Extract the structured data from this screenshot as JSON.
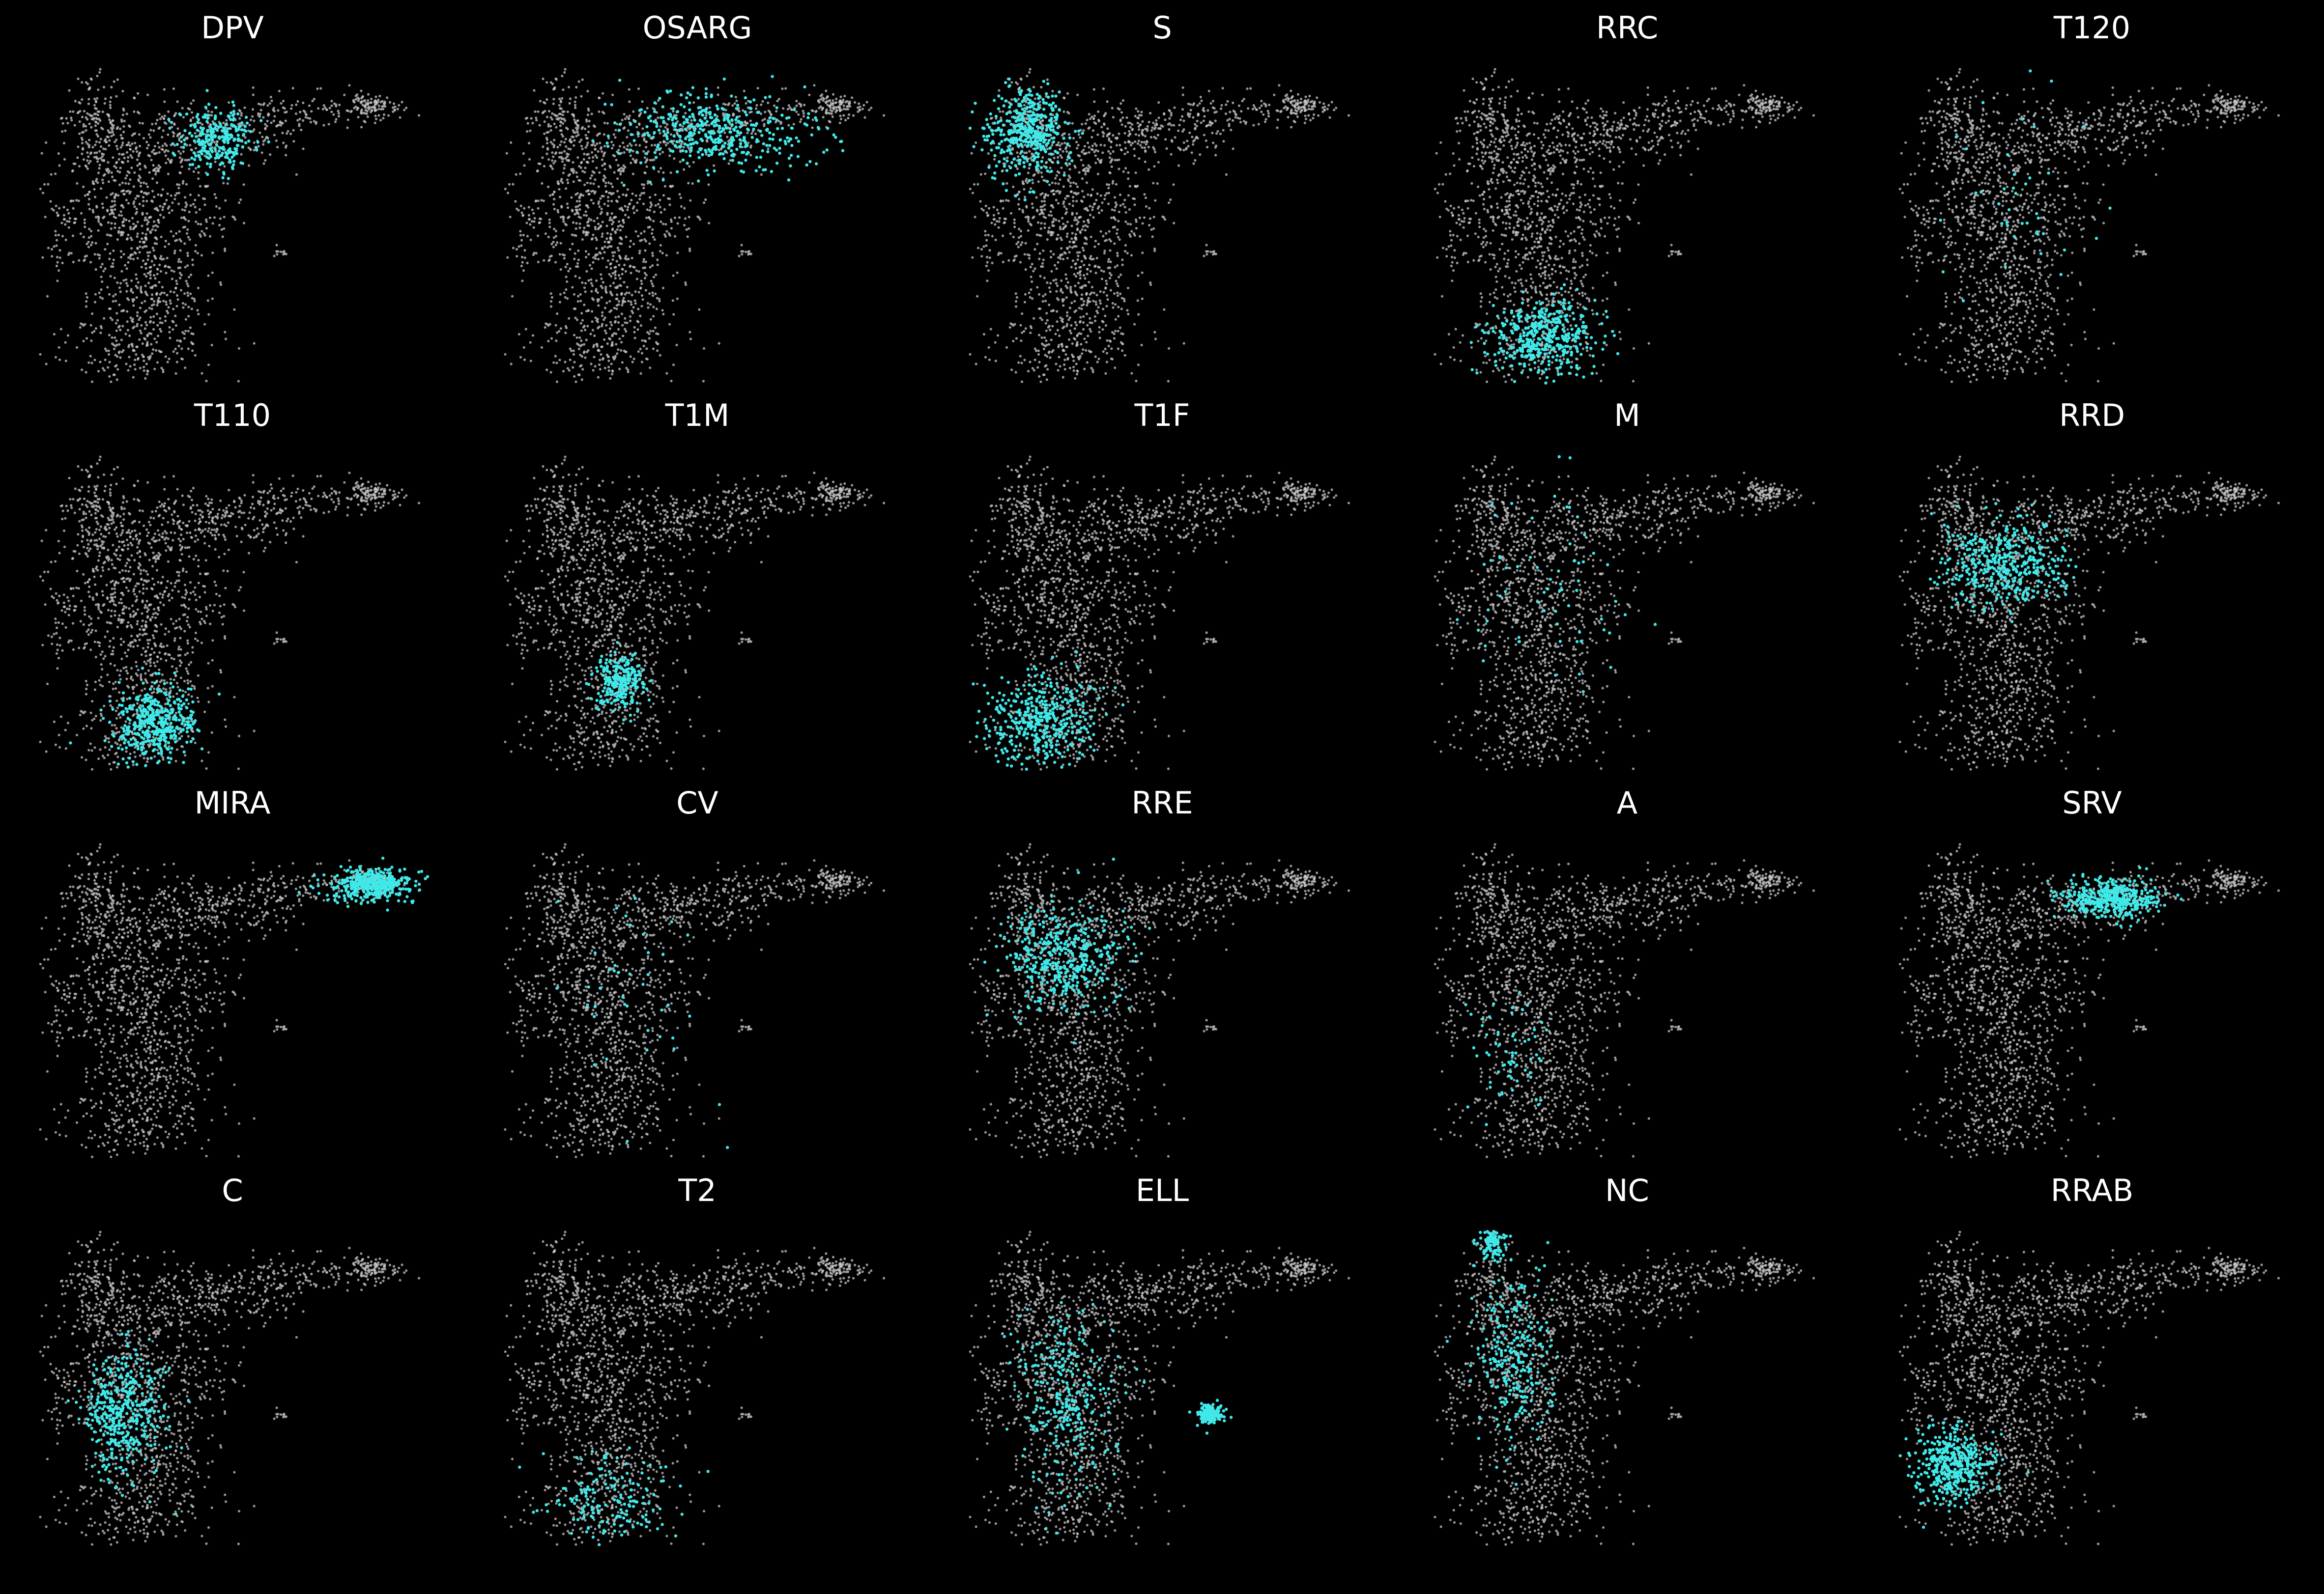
{
  "figure": {
    "background": "#000000",
    "base_color": "#c8c8c8",
    "highlight_color": "#40e8e8"
  },
  "chart_data": {
    "type": "scatter",
    "title": "",
    "xlabel": "",
    "ylabel": "",
    "axes_visible": false,
    "grid": false,
    "rows": 4,
    "columns": 5,
    "panels": [
      {
        "title": "DPV",
        "highlight": [
          {
            "x": 0.46,
            "y": 0.78,
            "sx": 0.05,
            "sy": 0.05,
            "w": 0.6
          }
        ]
      },
      {
        "title": "OSARG",
        "highlight": [
          {
            "x": 0.55,
            "y": 0.8,
            "sx": 0.12,
            "sy": 0.06,
            "w": 1.0
          }
        ]
      },
      {
        "title": "S",
        "highlight": [
          {
            "x": 0.15,
            "y": 0.8,
            "sx": 0.05,
            "sy": 0.07,
            "w": 1.0
          }
        ]
      },
      {
        "title": "RRC",
        "highlight": [
          {
            "x": 0.28,
            "y": 0.15,
            "sx": 0.07,
            "sy": 0.06,
            "w": 1.0
          }
        ]
      },
      {
        "title": "T120",
        "highlight": [
          {
            "x": 0.3,
            "y": 0.55,
            "sx": 0.1,
            "sy": 0.2,
            "w": 0.1
          }
        ]
      },
      {
        "title": "T110",
        "highlight": [
          {
            "x": 0.3,
            "y": 0.15,
            "sx": 0.05,
            "sy": 0.06,
            "w": 1.0
          }
        ]
      },
      {
        "title": "T1M",
        "highlight": [
          {
            "x": 0.3,
            "y": 0.28,
            "sx": 0.03,
            "sy": 0.04,
            "w": 0.6
          }
        ]
      },
      {
        "title": "T1F",
        "highlight": [
          {
            "x": 0.18,
            "y": 0.16,
            "sx": 0.07,
            "sy": 0.07,
            "w": 1.0
          }
        ]
      },
      {
        "title": "M",
        "highlight": [
          {
            "x": 0.3,
            "y": 0.6,
            "sx": 0.1,
            "sy": 0.15,
            "w": 0.15
          }
        ]
      },
      {
        "title": "RRD",
        "highlight": [
          {
            "x": 0.27,
            "y": 0.66,
            "sx": 0.08,
            "sy": 0.07,
            "w": 1.0
          }
        ]
      },
      {
        "title": "MIRA",
        "highlight": [
          {
            "x": 0.86,
            "y": 0.87,
            "sx": 0.05,
            "sy": 0.025,
            "w": 1.0
          }
        ]
      },
      {
        "title": "CV",
        "highlight": [
          {
            "x": 0.3,
            "y": 0.5,
            "sx": 0.1,
            "sy": 0.2,
            "w": 0.1
          }
        ]
      },
      {
        "title": "RRE",
        "highlight": [
          {
            "x": 0.24,
            "y": 0.64,
            "sx": 0.08,
            "sy": 0.08,
            "w": 1.0
          }
        ]
      },
      {
        "title": "A",
        "highlight": [
          {
            "x": 0.2,
            "y": 0.3,
            "sx": 0.05,
            "sy": 0.1,
            "w": 0.15
          }
        ]
      },
      {
        "title": "SRV",
        "highlight": [
          {
            "x": 0.55,
            "y": 0.83,
            "sx": 0.06,
            "sy": 0.03,
            "w": 1.0
          }
        ]
      },
      {
        "title": "C",
        "highlight": [
          {
            "x": 0.22,
            "y": 0.42,
            "sx": 0.05,
            "sy": 0.1,
            "w": 1.0
          }
        ]
      },
      {
        "title": "T2",
        "highlight": [
          {
            "x": 0.28,
            "y": 0.15,
            "sx": 0.08,
            "sy": 0.07,
            "w": 0.4
          }
        ]
      },
      {
        "title": "ELL",
        "highlight": [
          {
            "x": 0.25,
            "y": 0.45,
            "sx": 0.06,
            "sy": 0.15,
            "w": 0.7
          },
          {
            "x": 0.62,
            "y": 0.42,
            "sx": 0.015,
            "sy": 0.015,
            "w": 0.4
          }
        ]
      },
      {
        "title": "NC",
        "highlight": [
          {
            "x": 0.15,
            "y": 0.97,
            "sx": 0.015,
            "sy": 0.03,
            "w": 0.3
          },
          {
            "x": 0.2,
            "y": 0.6,
            "sx": 0.05,
            "sy": 0.15,
            "w": 0.6
          }
        ]
      },
      {
        "title": "RRAB",
        "highlight": [
          {
            "x": 0.14,
            "y": 0.26,
            "sx": 0.05,
            "sy": 0.06,
            "w": 1.0
          }
        ]
      }
    ]
  }
}
